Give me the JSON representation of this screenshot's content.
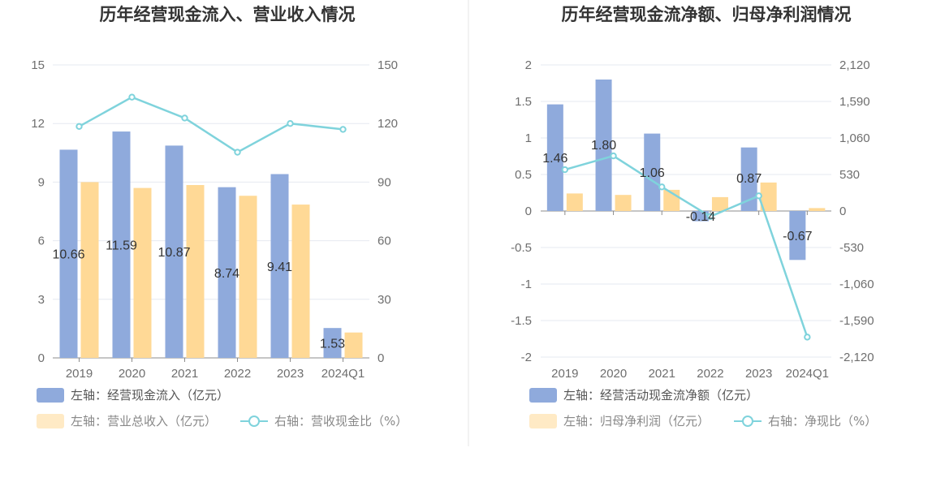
{
  "chart_data": [
    {
      "type": "bar",
      "title": "历年经营现金流入、营业收入情况",
      "categories": [
        "2019",
        "2020",
        "2021",
        "2022",
        "2023",
        "2024Q1"
      ],
      "left_axis": {
        "ylim": [
          0,
          15
        ],
        "ticks": [
          "0",
          "3",
          "6",
          "9",
          "12",
          "15"
        ]
      },
      "right_axis": {
        "ylim": [
          0,
          150
        ],
        "ticks": [
          "0",
          "30",
          "60",
          "90",
          "120",
          "150"
        ]
      },
      "grid": true,
      "legend_position": "bottom-left",
      "series": [
        {
          "name": "左轴：经营现金流入（亿元）",
          "type": "bar",
          "axis": "left",
          "color": "#8faadc",
          "values": [
            10.66,
            11.59,
            10.87,
            8.74,
            9.41,
            1.53
          ],
          "labels": [
            "10.66",
            "11.59",
            "10.87",
            "8.74",
            "9.41",
            "1.53"
          ]
        },
        {
          "name": "左轴：营业总收入（亿元）",
          "type": "bar",
          "axis": "left",
          "color": "#ffd996",
          "values": [
            9.0,
            8.7,
            8.85,
            8.3,
            7.85,
            1.3
          ]
        },
        {
          "name": "右轴：营收现金比（%）",
          "type": "line",
          "axis": "right",
          "color": "#7fd3dc",
          "values": [
            118.5,
            133.5,
            122.8,
            105.3,
            120.0,
            117.0
          ]
        }
      ]
    },
    {
      "type": "bar",
      "title": "历年经营现金流净额、归母净利润情况",
      "categories": [
        "2019",
        "2020",
        "2021",
        "2022",
        "2023",
        "2024Q1"
      ],
      "left_axis": {
        "ylim": [
          -2,
          2
        ],
        "ticks": [
          "-2",
          "-1.5",
          "-1",
          "-0.5",
          "0",
          "0.5",
          "1",
          "1.5",
          "2"
        ]
      },
      "right_axis": {
        "ylim": [
          -2120,
          2120
        ],
        "ticks": [
          "-2,120",
          "-1,590",
          "-1,060",
          "-530",
          "0",
          "530",
          "1,060",
          "1,590",
          "2,120"
        ]
      },
      "grid": true,
      "legend_position": "bottom-left",
      "series": [
        {
          "name": "左轴：经营活动现金流净额（亿元）",
          "type": "bar",
          "axis": "left",
          "color": "#8faadc",
          "values": [
            1.46,
            1.8,
            1.06,
            -0.14,
            0.87,
            -0.67
          ],
          "labels": [
            "1.46",
            "1.80",
            "1.06",
            "-0.14",
            "0.87",
            "-0.67"
          ]
        },
        {
          "name": "左轴：归母净利润（亿元）",
          "type": "bar",
          "axis": "left",
          "color": "#ffd996",
          "values": [
            0.24,
            0.22,
            0.29,
            0.19,
            0.39,
            0.04
          ]
        },
        {
          "name": "右轴：净现比（%）",
          "type": "line",
          "axis": "right",
          "color": "#7fd3dc",
          "values": [
            600,
            800,
            350,
            -80,
            220,
            -1830
          ]
        }
      ]
    }
  ]
}
